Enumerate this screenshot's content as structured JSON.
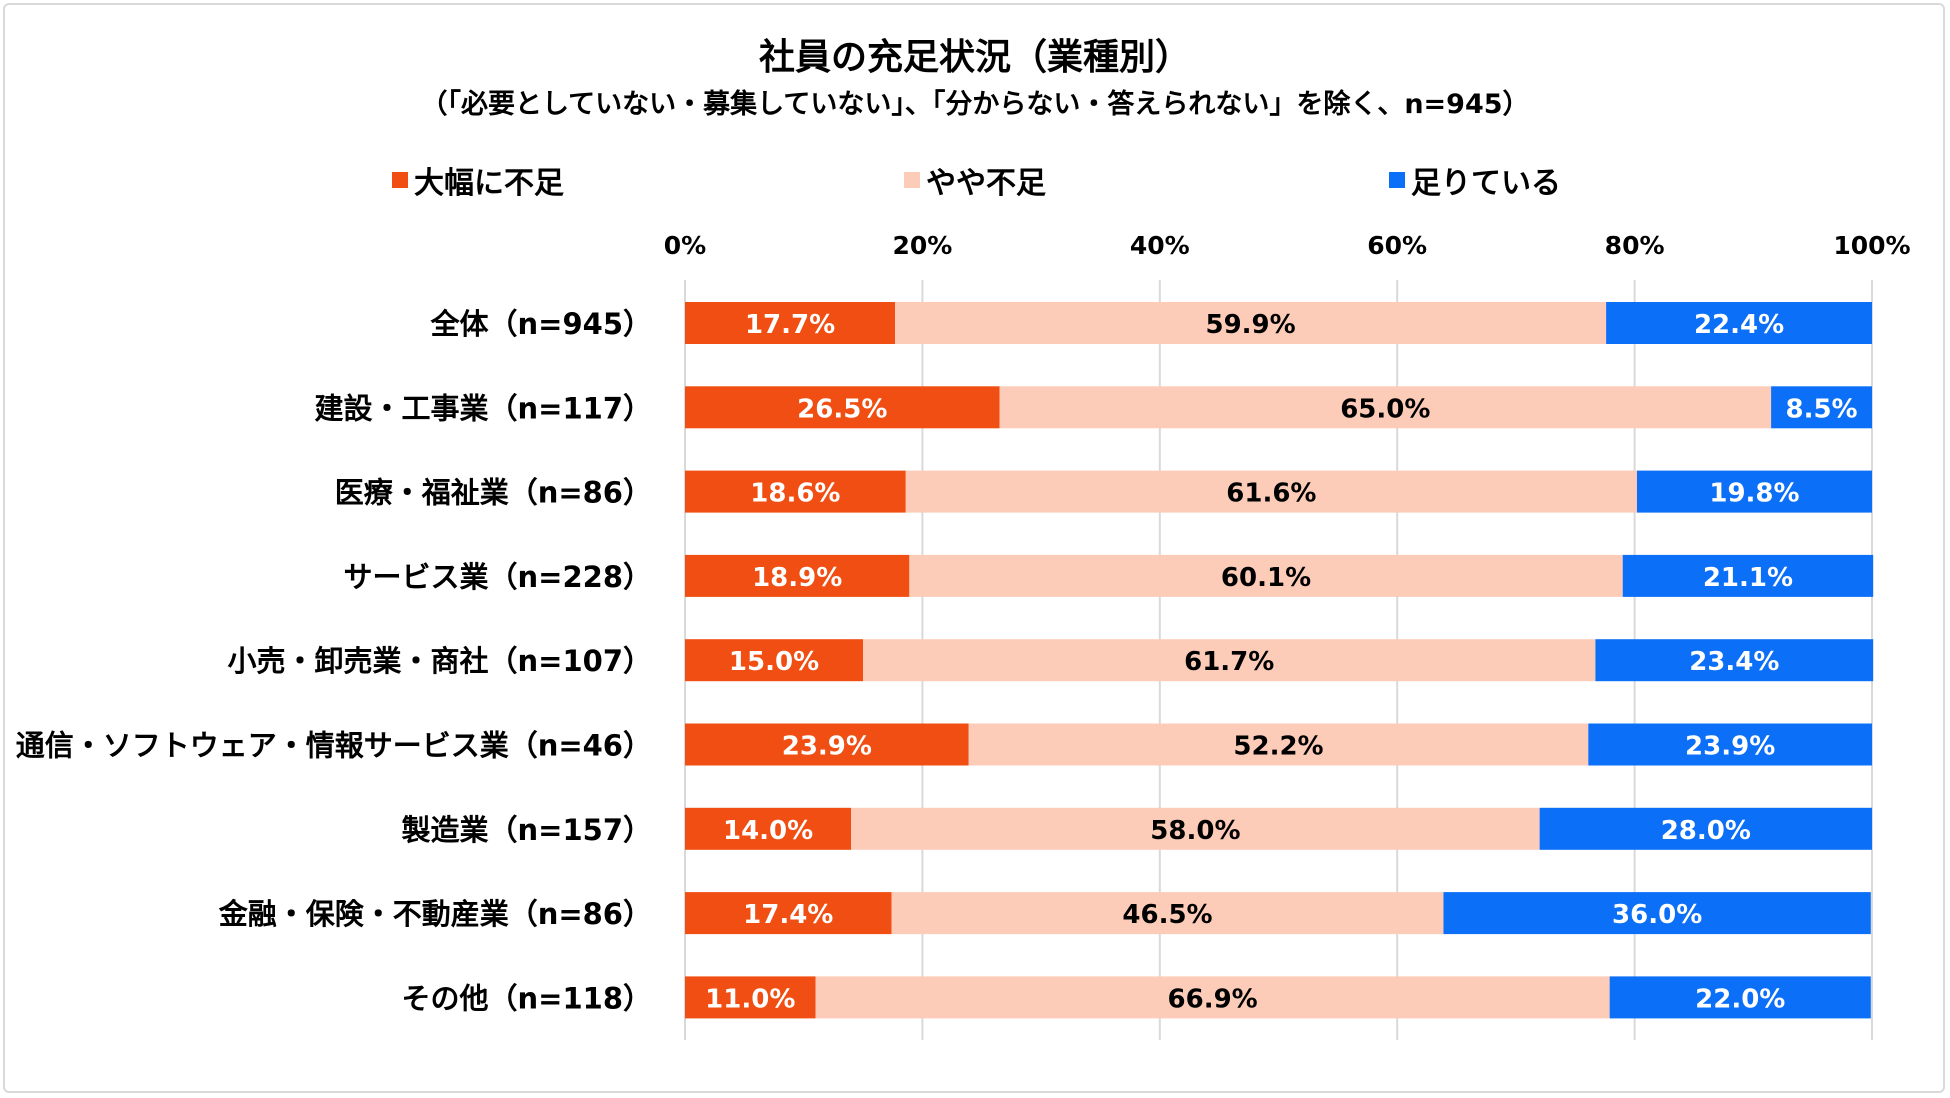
{
  "chart_data": {
    "type": "bar",
    "orientation": "horizontal",
    "stacked": "percent",
    "title": "社員の充足状況（業種別）",
    "subtitle": "（「必要としていない・募集していない」、「分からない・答えられない」を除く、n=945）",
    "categories": [
      "全体（n=945）",
      "建設・工事業（n=117）",
      "医療・福祉業（n=86）",
      "サービス業（n=228）",
      "小売・卸売業・商社（n=107）",
      "通信・ソフトウェア・情報サービス業（n=46）",
      "製造業（n=157）",
      "金融・保険・不動産業（n=86）",
      "その他（n=118）"
    ],
    "series": [
      {
        "name": "大幅に不足",
        "color": "#f04e12",
        "label_color": "#ffffff",
        "values": [
          17.7,
          26.5,
          18.6,
          18.9,
          15.0,
          23.9,
          14.0,
          17.4,
          11.0
        ],
        "labels": [
          "17.7%",
          "26.5%",
          "18.6%",
          "18.9%",
          "15.0%",
          "23.9%",
          "14.0%",
          "17.4%",
          "11.0%"
        ]
      },
      {
        "name": "やや不足",
        "color": "#fcccb8",
        "label_color": "#000000",
        "values": [
          59.9,
          65.0,
          61.6,
          60.1,
          61.7,
          52.2,
          58.0,
          46.5,
          66.9
        ],
        "labels": [
          "59.9%",
          "65.0%",
          "61.6%",
          "60.1%",
          "61.7%",
          "52.2%",
          "58.0%",
          "46.5%",
          "66.9%"
        ]
      },
      {
        "name": "足りている",
        "color": "#0b6ff7",
        "label_color": "#ffffff",
        "values": [
          22.4,
          8.5,
          19.8,
          21.1,
          23.4,
          23.9,
          28.0,
          36.0,
          22.0
        ],
        "labels": [
          "22.4%",
          "8.5%",
          "19.8%",
          "21.1%",
          "23.4%",
          "23.9%",
          "28.0%",
          "36.0%",
          "22.0%"
        ]
      }
    ],
    "xlim": [
      0,
      100
    ],
    "x_ticks": [
      "0%",
      "20%",
      "40%",
      "60%",
      "80%",
      "100%"
    ],
    "x_tick_values": [
      0,
      20,
      40,
      60,
      80,
      100
    ],
    "axis_position": "top",
    "grid": true,
    "legend_position": "top"
  }
}
